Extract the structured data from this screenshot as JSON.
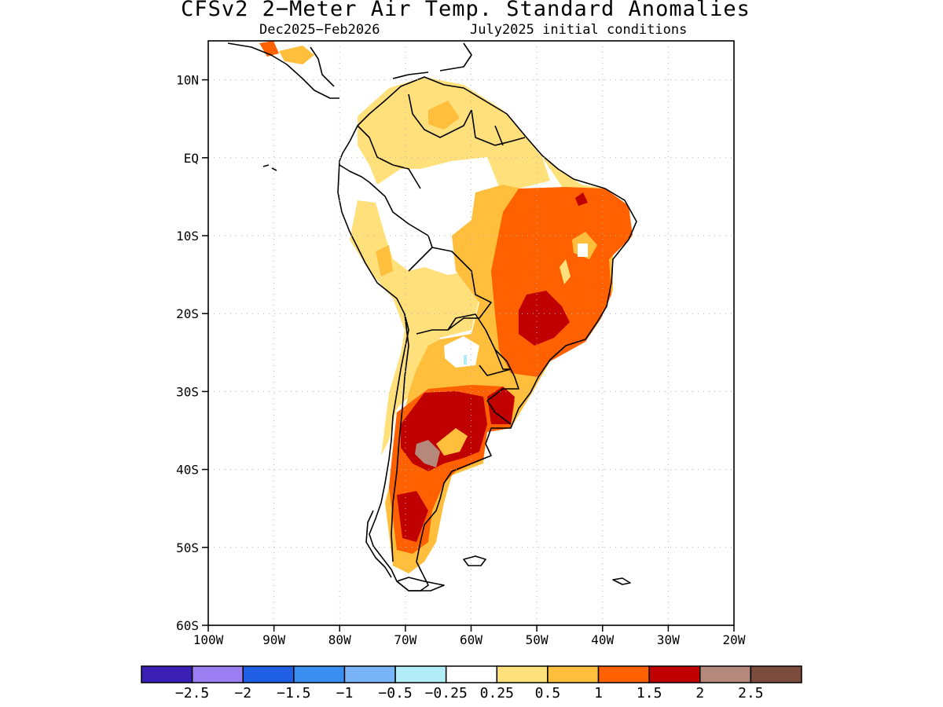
{
  "title": "CFSv2 2−Meter Air Temp. Standard Anomalies",
  "subtitle_left": "Dec2025−Feb2026",
  "subtitle_right": "July2025 initial conditions",
  "map": {
    "lon_range": [
      -100,
      -20
    ],
    "lat_range": [
      -60,
      15
    ],
    "lat_ticks": [
      {
        "value": 10,
        "label": "10N"
      },
      {
        "value": 0,
        "label": "EQ"
      },
      {
        "value": -10,
        "label": "10S"
      },
      {
        "value": -20,
        "label": "20S"
      },
      {
        "value": -30,
        "label": "30S"
      },
      {
        "value": -40,
        "label": "40S"
      },
      {
        "value": -50,
        "label": "50S"
      },
      {
        "value": -60,
        "label": "60S"
      }
    ],
    "lon_ticks": [
      {
        "value": -100,
        "label": "100W"
      },
      {
        "value": -90,
        "label": "90W"
      },
      {
        "value": -80,
        "label": "80W"
      },
      {
        "value": -70,
        "label": "70W"
      },
      {
        "value": -60,
        "label": "60W"
      },
      {
        "value": -50,
        "label": "50W"
      },
      {
        "value": -40,
        "label": "40W"
      },
      {
        "value": -30,
        "label": "30W"
      },
      {
        "value": -20,
        "label": "20W"
      }
    ],
    "grid": "dotted"
  },
  "colorbar": {
    "colors": [
      "#3a1fb5",
      "#9b7ff2",
      "#1e5fe6",
      "#3a8ef0",
      "#78b4f7",
      "#b2ecf7",
      "#ffffff",
      "#ffe07a",
      "#ffbf3c",
      "#ff6100",
      "#c00000",
      "#b5887c",
      "#7b4b3c"
    ],
    "labels": [
      "−2.5",
      "−2",
      "−1.5",
      "−1",
      "−0.5",
      "−0.25",
      "0.25",
      "0.5",
      "1",
      "1.5",
      "2",
      "2.5"
    ]
  }
}
